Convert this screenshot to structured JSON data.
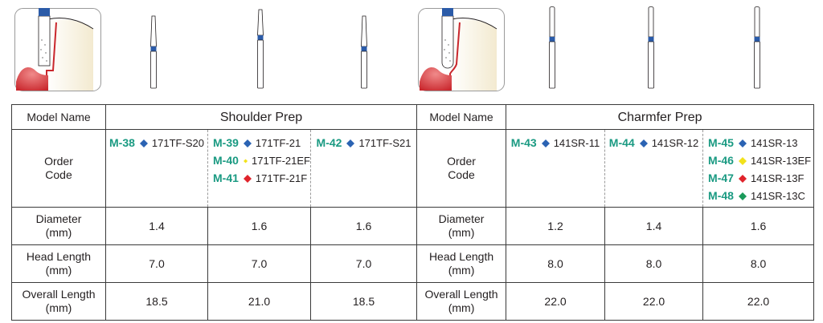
{
  "colors": {
    "model_green": "#1a9a82",
    "diamond_blue": "#2b63b3",
    "diamond_yellow": "#f2e21b",
    "diamond_red": "#e0232b",
    "diamond_green": "#1a9a5a",
    "band_blue": "#2b5ba8",
    "gum_red": "#c9272d"
  },
  "illustrations": {
    "left": {
      "icon": "shoulder-prep-tooth-diagram-icon"
    },
    "right": {
      "icon": "chamfer-prep-tooth-diagram-icon"
    }
  },
  "table": {
    "row_labels": {
      "model_name": "Model Name",
      "order_code_1": "Order",
      "order_code_2": "Code",
      "diameter_1": "Diameter",
      "diameter_2": "(mm)",
      "head_length_1": "Head Length",
      "head_length_2": "(mm)",
      "overall_length_1": "Overall Length",
      "overall_length_2": "(mm)"
    },
    "groups": {
      "shoulder": "Shoulder Prep",
      "chamfer": "Charmfer Prep"
    },
    "shoulder": [
      {
        "codes": [
          {
            "model": "M-38",
            "color": "blue",
            "code": "171TF-S20"
          }
        ],
        "diameter": "1.4",
        "head_length": "7.0",
        "overall_length": "18.5"
      },
      {
        "codes": [
          {
            "model": "M-39",
            "color": "blue",
            "code": "171TF-21"
          },
          {
            "model": "M-40",
            "color": "yellow",
            "code": "171TF-21EF"
          },
          {
            "model": "M-41",
            "color": "red",
            "code": "171TF-21F"
          }
        ],
        "diameter": "1.6",
        "head_length": "7.0",
        "overall_length": "21.0"
      },
      {
        "codes": [
          {
            "model": "M-42",
            "color": "blue",
            "code": "171TF-S21"
          }
        ],
        "diameter": "1.6",
        "head_length": "7.0",
        "overall_length": "18.5"
      }
    ],
    "chamfer": [
      {
        "codes": [
          {
            "model": "M-43",
            "color": "blue",
            "code": "141SR-11"
          }
        ],
        "diameter": "1.2",
        "head_length": "8.0",
        "overall_length": "22.0"
      },
      {
        "codes": [
          {
            "model": "M-44",
            "color": "blue",
            "code": "141SR-12"
          }
        ],
        "diameter": "1.4",
        "head_length": "8.0",
        "overall_length": "22.0"
      },
      {
        "codes": [
          {
            "model": "M-45",
            "color": "blue",
            "code": "141SR-13"
          },
          {
            "model": "M-46",
            "color": "yellow",
            "code": "141SR-13EF"
          },
          {
            "model": "M-47",
            "color": "red",
            "code": "141SR-13F"
          },
          {
            "model": "M-48",
            "color": "green",
            "code": "141SR-13C"
          }
        ],
        "diameter": "1.6",
        "head_length": "8.0",
        "overall_length": "22.0"
      }
    ]
  }
}
